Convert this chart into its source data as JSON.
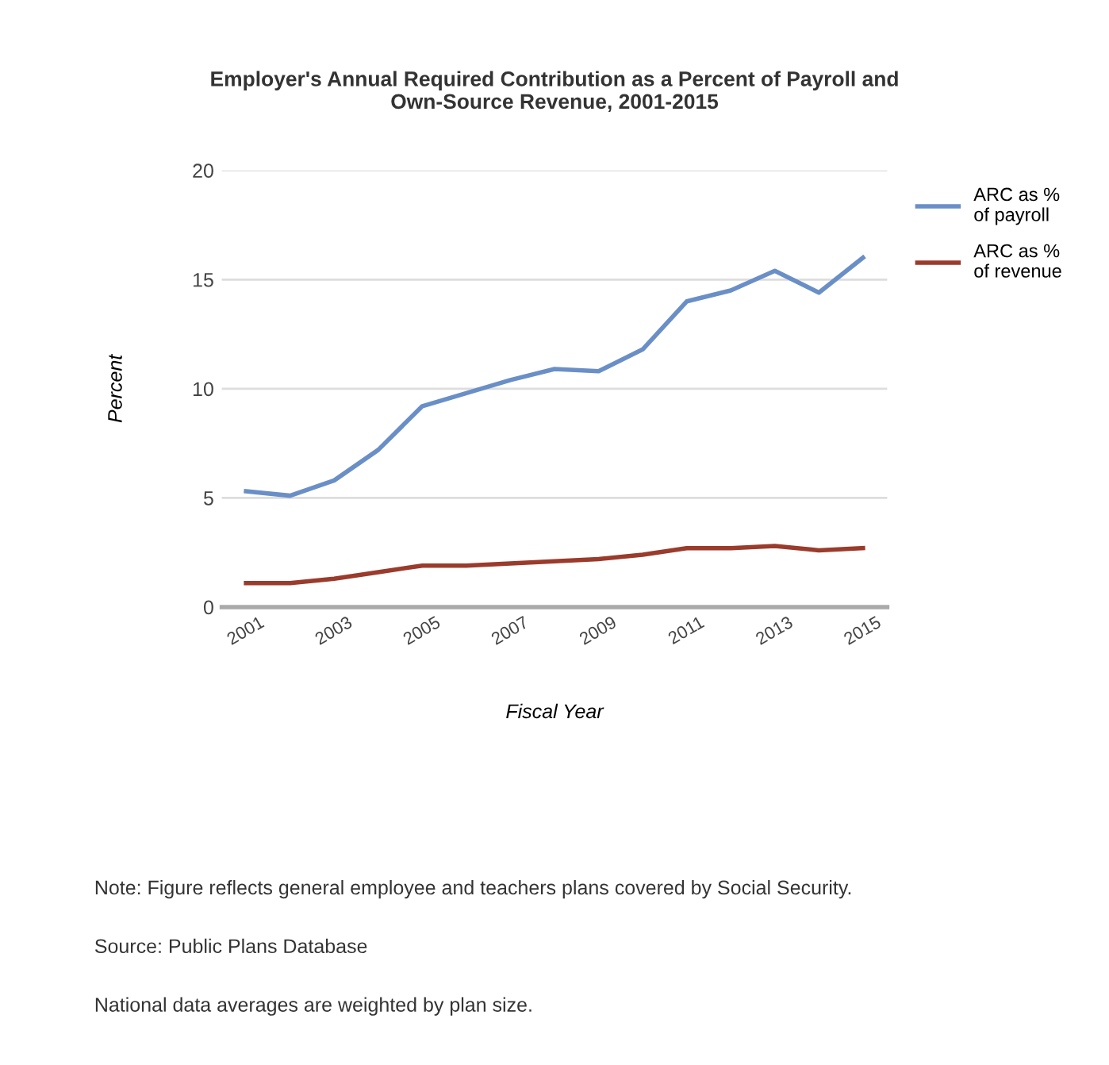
{
  "chart_data": {
    "type": "line",
    "title": "Employer's Annual Required Contribution as a Percent of Payroll and\nOwn-Source Revenue, 2001-2015",
    "xlabel": "Fiscal Year",
    "ylabel": "Percent",
    "x": [
      2001,
      2002,
      2003,
      2004,
      2005,
      2006,
      2007,
      2008,
      2009,
      2010,
      2011,
      2012,
      2013,
      2014,
      2015
    ],
    "series": [
      {
        "name": "ARC as %\nof payroll",
        "color": "#6a8fc7",
        "values": [
          5.3,
          5.1,
          5.8,
          7.2,
          9.2,
          9.8,
          10.4,
          10.9,
          10.8,
          11.8,
          14.0,
          14.5,
          15.4,
          14.4,
          16.0
        ]
      },
      {
        "name": "ARC as %\nof revenue",
        "color": "#9a3b2c",
        "values": [
          1.1,
          1.1,
          1.3,
          1.6,
          1.9,
          1.9,
          2.0,
          2.1,
          2.2,
          2.4,
          2.7,
          2.7,
          2.8,
          2.6,
          2.7
        ]
      }
    ],
    "xlim": [
      2000.45,
      2015.55
    ],
    "xticks": [
      2001,
      2003,
      2005,
      2007,
      2009,
      2011,
      2013,
      2015
    ],
    "ylim": [
      0,
      20
    ],
    "yticks": [
      0,
      5,
      10,
      15,
      20
    ],
    "grid": "y",
    "legend": "right",
    "marker": "none",
    "line_style": "solid",
    "annotations": [
      "Note: Figure reflects general employee and teachers plans covered by Social Security.",
      "Source: Public Plans Database",
      "National data averages are weighted by plan size."
    ]
  }
}
